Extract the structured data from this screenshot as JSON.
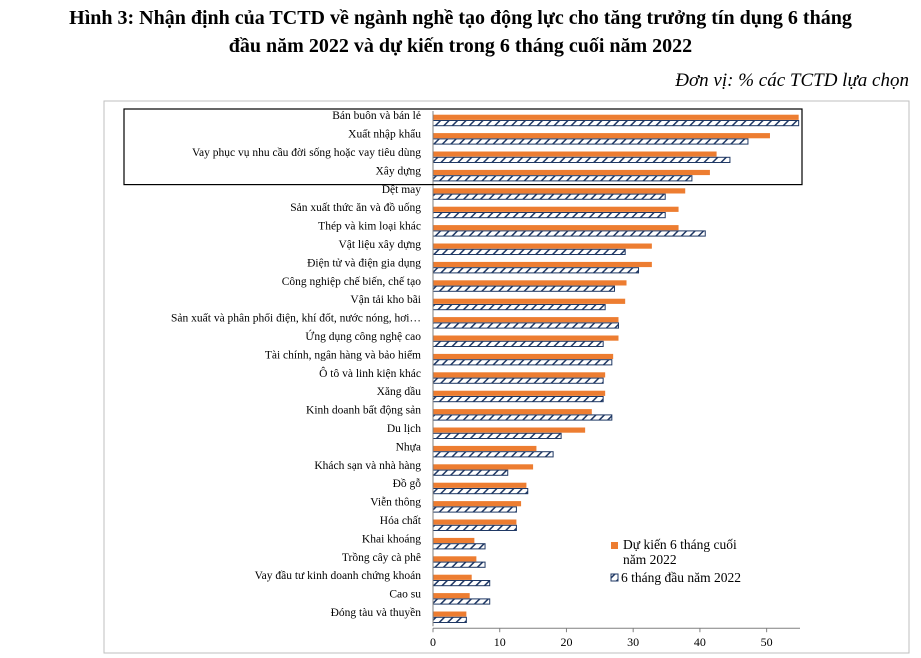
{
  "header": {
    "title_line1": "Hình 3: Nhận định của TCTD về ngành nghề tạo động lực cho tăng trưởng tín dụng 6 tháng",
    "title_line2": "đầu năm 2022 và dự kiến trong 6 tháng cuối năm 2022",
    "unit": "Đơn vị: % các TCTD lựa chọn"
  },
  "chart_data": {
    "type": "bar",
    "orientation": "horizontal",
    "categories": [
      "Bán buôn và bán lẻ",
      "Xuất nhập khẩu",
      "Vay phục vụ nhu cầu đời sống hoặc vay tiêu dùng",
      "Xây dựng",
      "Dệt may",
      "Sản xuất thức ăn và đồ uống",
      "Thép và kim loại khác",
      "Vật liệu xây dựng",
      "Điện tử và điện gia dụng",
      "Công nghiệp chế biến, chế tạo",
      "Vận tải kho bãi",
      "Sản xuất và phân phối điện, khí đốt, nước nóng, hơi…",
      "Ứng dụng công nghệ cao",
      "Tài chính, ngân hàng và bảo hiểm",
      "Ô tô và linh kiện khác",
      "Xăng dầu",
      "Kinh doanh bất động sản",
      "Du lịch",
      "Nhựa",
      "Khách sạn và nhà hàng",
      "Đồ gỗ",
      "Viễn thông",
      "Hóa chất",
      "Khai khoáng",
      "Trồng cây cà phê",
      "Vay đầu tư kinh doanh chứng khoán",
      "Cao su",
      "Đóng tàu và thuyền"
    ],
    "series": [
      {
        "name": "Dự kiến 6 tháng cuối năm 2022",
        "color": "#ED7D31",
        "values": [
          54.8,
          50.5,
          42.5,
          41.5,
          37.8,
          36.8,
          36.8,
          32.8,
          32.8,
          29.0,
          28.8,
          27.8,
          27.8,
          27.0,
          25.8,
          25.8,
          23.8,
          22.8,
          15.5,
          15.0,
          14.0,
          13.2,
          12.5,
          6.2,
          6.5,
          5.8,
          5.5,
          5.0
        ]
      },
      {
        "name": "6 tháng đầu năm 2022",
        "color": "#1F3864",
        "pattern": "hatched",
        "values": [
          54.8,
          47.2,
          44.5,
          38.8,
          34.8,
          34.8,
          40.8,
          28.8,
          30.8,
          27.2,
          25.8,
          27.8,
          25.5,
          26.8,
          25.5,
          25.5,
          26.8,
          19.2,
          18.0,
          11.2,
          14.2,
          12.5,
          12.5,
          7.8,
          7.8,
          8.5,
          8.5,
          5.0
        ]
      }
    ],
    "xlim": [
      0,
      55
    ],
    "xticks": [
      0,
      10,
      20,
      30,
      40,
      50
    ],
    "highlight_box_categories": 4,
    "legend_position": "bottom-right",
    "legend": {
      "line1": "Dự kiến 6 tháng cuối",
      "line2": "năm 2022",
      "line3": "6 tháng đầu năm 2022"
    }
  }
}
